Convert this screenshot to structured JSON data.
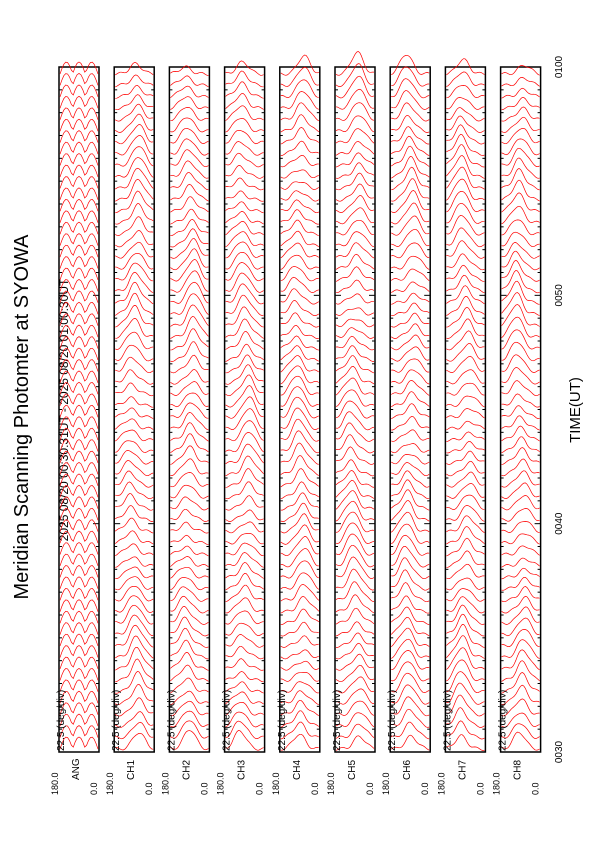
{
  "page": {
    "title": "Meridian Scanning Photomter at SYOWA",
    "time_range": "2025 08/20 00:30:31UT - 2025 08/20 01:00:30UT",
    "xlabel": "TIME(UT)"
  },
  "colors": {
    "trace": "#ff0000",
    "frame": "#000000",
    "background": "#ffffff"
  },
  "chart_data": {
    "type": "line",
    "orientation": "rotated-90-ccw",
    "title": "Meridian Scanning Photomter at SYOWA",
    "subtitle": "2025 08/20 00:30:31UT - 2025 08/20 01:00:30UT",
    "xlabel": "TIME(UT)",
    "x_ticks": [
      "0030",
      "0040",
      "0050",
      "0100"
    ],
    "x_range": [
      "0030",
      "0100"
    ],
    "scale_label": "22.5 (deg/div)",
    "y_ticks": [
      "180.0",
      "0.0"
    ],
    "y_range": [
      0,
      180
    ],
    "panels": [
      {
        "channel": "ANG",
        "kind": "angle"
      },
      {
        "channel": "CH1",
        "kind": "photometer"
      },
      {
        "channel": "CH2",
        "kind": "photometer"
      },
      {
        "channel": "CH3",
        "kind": "photometer"
      },
      {
        "channel": "CH4",
        "kind": "photometer"
      },
      {
        "channel": "CH5",
        "kind": "photometer"
      },
      {
        "channel": "CH6",
        "kind": "photometer"
      },
      {
        "channel": "CH7",
        "kind": "photometer"
      },
      {
        "channel": "CH8",
        "kind": "photometer"
      }
    ],
    "scans_per_panel": 60,
    "grid": false,
    "legend": "none"
  }
}
